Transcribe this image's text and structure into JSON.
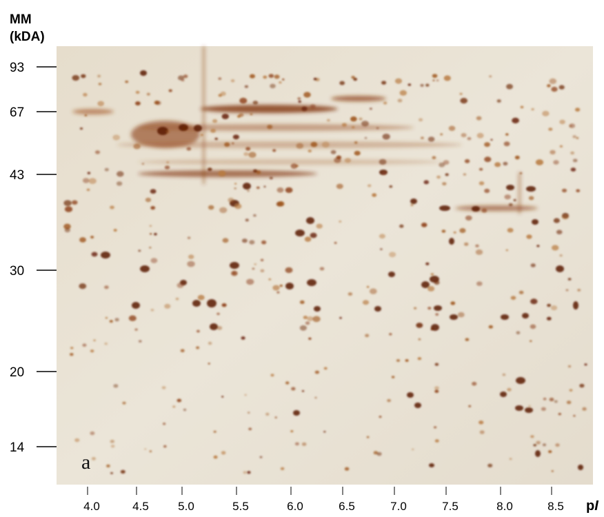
{
  "y_axis": {
    "title_lines": [
      "MM",
      "(kDA)"
    ],
    "labels": [
      "93",
      "67",
      "43",
      "30",
      "20",
      "14"
    ]
  },
  "x_axis": {
    "labels": [
      "4.0",
      "4.5",
      "5.0",
      "5.5",
      "6.0",
      "6.5",
      "7.0",
      "7.5",
      "8.0",
      "8.5"
    ],
    "title_parts": [
      "p",
      "I"
    ]
  },
  "panel_label": "a"
}
